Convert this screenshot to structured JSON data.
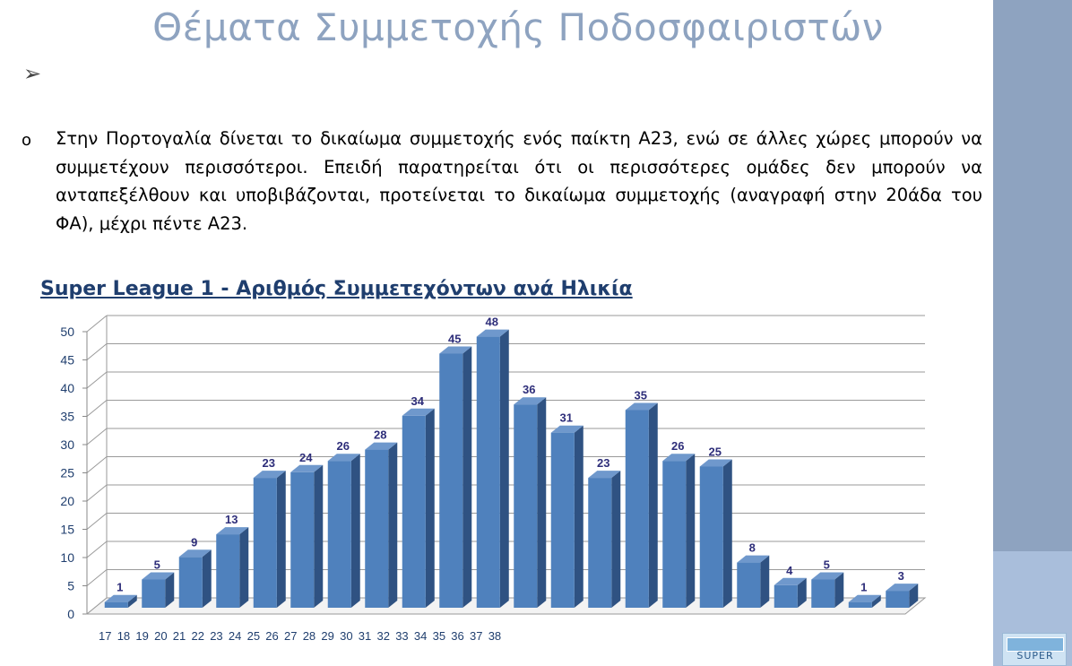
{
  "slide": {
    "title": "Θέματα Συμμετοχής Ποδοσφαιριστών",
    "bullet_arrow": "➢",
    "bullet_circle": "o",
    "paragraph": "Στην Πορτογαλία δίνεται το δικαίωμα συμμετοχής ενός παίκτη Α23, ενώ σε άλλες χώρες μπορούν να συμμετέχουν περισσότεροι. Επειδή παρατηρείται ότι οι περισσότερες ομάδες δεν μπορούν να ανταπεξέλθουν και υποβιβάζονται, προτείνεται το δικαίωμα συμμετοχής (αναγραφή στην 20άδα του ΦΑ), μέχρι πέντε Α23.",
    "logo_text": "SUPER"
  },
  "colors": {
    "title": "#8ea3c0",
    "sidebar": "#8ea3c0",
    "sidebar_lower": "#a9bedb",
    "bar_front": "#4f81bd",
    "bar_side": "#2f5282",
    "bar_top": "#6f98cc",
    "label": "#1f3e6e"
  },
  "chart_data": {
    "type": "bar",
    "title": "Super League 1 - Αριθμός Συμμετεχόντων ανά Ηλικία",
    "categories": [
      "17",
      "18",
      "19",
      "20",
      "21",
      "22",
      "23",
      "24",
      "25",
      "26",
      "27",
      "28",
      "29",
      "30",
      "31",
      "32",
      "33",
      "34",
      "35",
      "36",
      "37",
      "38"
    ],
    "values": [
      1,
      5,
      9,
      13,
      23,
      24,
      26,
      28,
      34,
      45,
      48,
      36,
      31,
      23,
      35,
      26,
      25,
      8,
      4,
      5,
      1,
      3
    ],
    "ylim": [
      0,
      50
    ],
    "yticks": [
      0,
      5,
      10,
      15,
      20,
      25,
      30,
      35,
      40,
      45,
      50
    ],
    "xlabel": "",
    "ylabel": "",
    "grid": true,
    "style": "3d-column"
  }
}
